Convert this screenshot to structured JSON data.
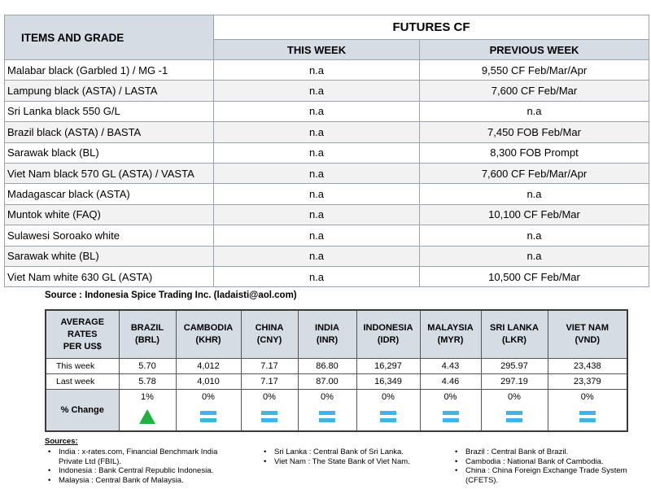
{
  "futures": {
    "header": {
      "items": "ITEMS AND GRADE",
      "group": "FUTURES CF",
      "this_week": "THIS WEEK",
      "previous_week": "PREVIOUS WEEK"
    },
    "rows": [
      [
        "Malabar black (Garbled 1) / MG -1",
        "n.a",
        "9,550 CF Feb/Mar/Apr"
      ],
      [
        "Lampung black (ASTA) / LASTA",
        "n.a",
        "7,600 CF Feb/Mar"
      ],
      [
        "Sri Lanka black 550 G/L",
        "n.a",
        "n.a"
      ],
      [
        "Brazil black (ASTA) / BASTA",
        "n.a",
        "7,450 FOB Feb/Mar"
      ],
      [
        "Sarawak black (BL)",
        "n.a",
        "8,300 FOB Prompt"
      ],
      [
        "Viet Nam black 570 GL (ASTA) / VASTA",
        "n.a",
        "7,600 CF Feb/Mar/Apr"
      ],
      [
        "Madagascar black (ASTA)",
        "n.a",
        "n.a"
      ],
      [
        "Muntok white (FAQ)",
        "n.a",
        "10,100 CF Feb/Mar"
      ],
      [
        "Sulawesi Soroako white",
        "n.a",
        "n.a"
      ],
      [
        "Sarawak  white (BL)",
        "n.a",
        "n.a"
      ],
      [
        "Viet Nam white 630 GL (ASTA)",
        "n.a",
        "10,500 CF Feb/Mar"
      ]
    ]
  },
  "source": "Source : Indonesia Spice Trading Inc. (ladaisti@aol.com)",
  "rates": {
    "header_label": [
      "AVERAGE",
      "RATES",
      "PER US$"
    ],
    "currencies": [
      {
        "name": "BRAZIL",
        "code": "(BRL)"
      },
      {
        "name": "CAMBODIA",
        "code": "(KHR)"
      },
      {
        "name": "CHINA",
        "code": "(CNY)"
      },
      {
        "name": "INDIA",
        "code": "(INR)"
      },
      {
        "name": "INDONESIA",
        "code": "(IDR)"
      },
      {
        "name": "MALAYSIA",
        "code": "(MYR)"
      },
      {
        "name": "SRI LANKA",
        "code": "(LKR)"
      },
      {
        "name": "VIET NAM",
        "code": "(VND)"
      }
    ],
    "rows": [
      {
        "label": "This week",
        "values": [
          "5.70",
          "4,012",
          "7.17",
          "86.80",
          "16,297",
          "4.43",
          "295.97",
          "23,438"
        ]
      },
      {
        "label": "Last week",
        "values": [
          "5.78",
          "4,010",
          "7.17",
          "87.00",
          "16,349",
          "4.46",
          "297.19",
          "23,379"
        ]
      },
      {
        "label": "% Change",
        "values": [
          "1%",
          "0%",
          "0%",
          "0%",
          "0%",
          "0%",
          "0%",
          "0%"
        ]
      }
    ]
  },
  "sources": {
    "title": "Sources:",
    "columns": [
      [
        "India : x-rates.com, Financial Benchmark India Private Ltd (FBIL).",
        "Indonesia : Bank Central Republic Indonesia.",
        "Malaysia : Central Bank of Malaysia."
      ],
      [
        "Sri Lanka : Central Bank of Sri Lanka.",
        "Viet Nam : The State Bank of Viet Nam."
      ],
      [
        "Brazil :  Central Bank of Brazil.",
        "Cambodia : National Bank of Cambodia.",
        "China : China Foreign Exchange Trade System (CFETS)."
      ]
    ]
  }
}
